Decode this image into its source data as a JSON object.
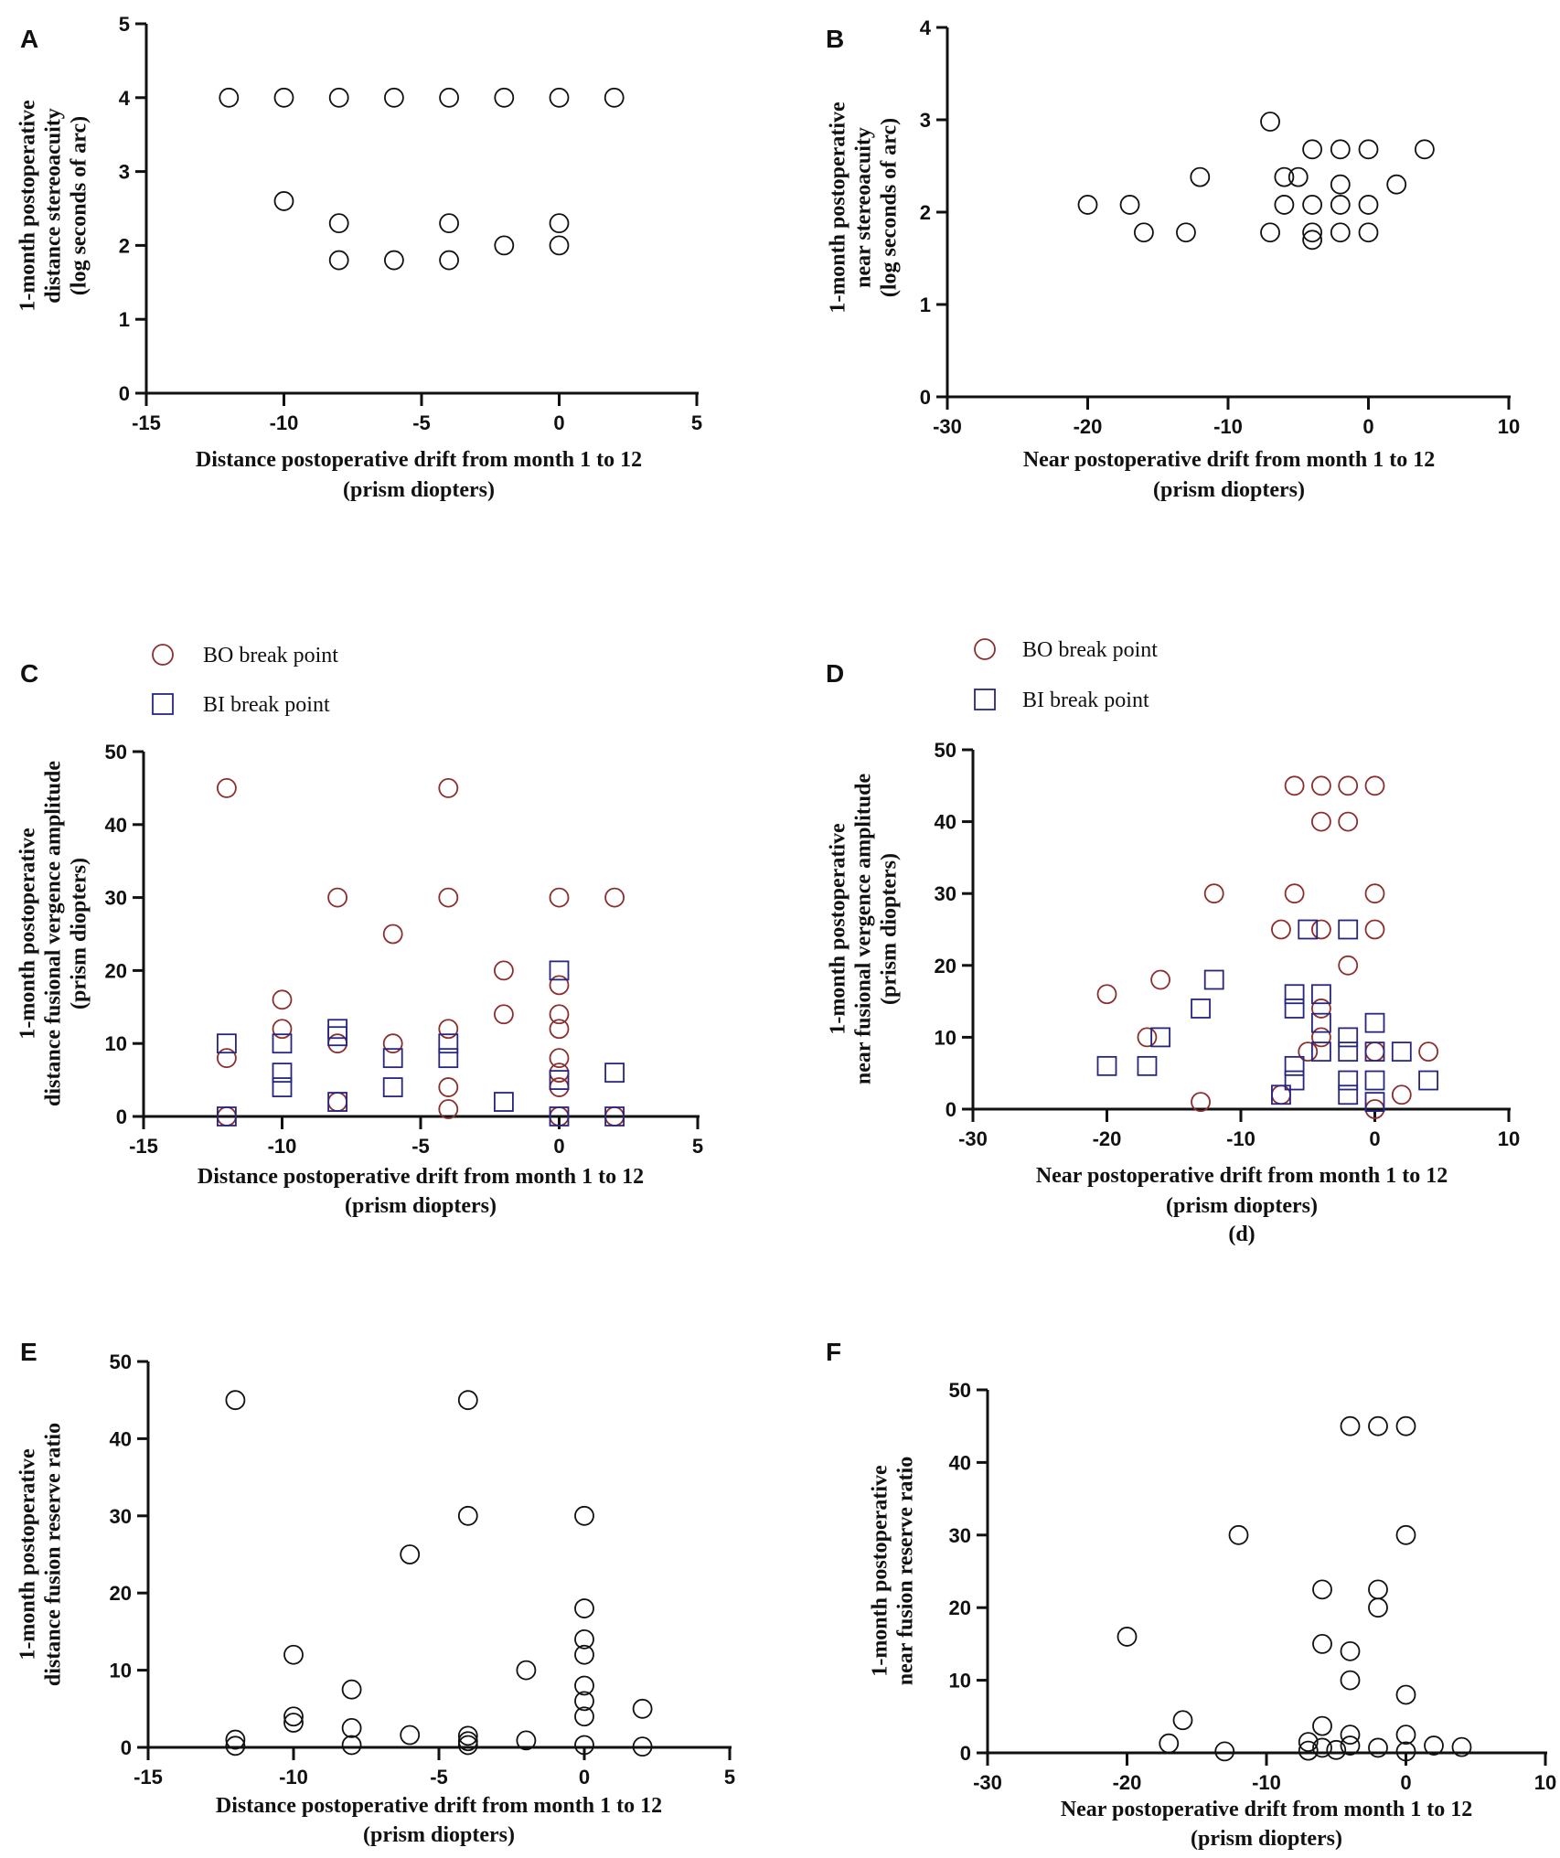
{
  "colors": {
    "black": "#111111",
    "bo": "#8b2e2e",
    "bi": "#262680"
  },
  "chart_data": [
    {
      "panel": "A",
      "type": "scatter",
      "title": "",
      "xlabel": [
        "Distance postoperative drift from month 1 to 12",
        "(prism diopters)"
      ],
      "ylabel": [
        "1-month postoperative",
        "distance stereoacuity",
        "(log seconds of arc)"
      ],
      "xlim": [
        -15,
        5
      ],
      "ylim": [
        0,
        5
      ],
      "xticks": [
        "-15",
        "-10",
        "-5",
        "0",
        "5"
      ],
      "yticks": [
        "0",
        "1",
        "2",
        "3",
        "4",
        "5"
      ],
      "series": [
        {
          "name": "stereoacuity",
          "marker": "circle",
          "color": "#111111",
          "points": [
            [
              -12,
              4
            ],
            [
              -10,
              4
            ],
            [
              -8,
              4
            ],
            [
              -6,
              4
            ],
            [
              -4,
              4
            ],
            [
              -2,
              4
            ],
            [
              0,
              4
            ],
            [
              2,
              4
            ],
            [
              -10,
              2.6
            ],
            [
              -8,
              2.3
            ],
            [
              -8,
              1.8
            ],
            [
              -6,
              1.8
            ],
            [
              -4,
              2.3
            ],
            [
              -4,
              1.8
            ],
            [
              -2,
              2.0
            ],
            [
              0,
              2.3
            ],
            [
              0,
              2.0
            ]
          ]
        }
      ]
    },
    {
      "panel": "B",
      "type": "scatter",
      "title": "",
      "xlabel": [
        "Near postoperative drift from month 1 to 12",
        "(prism diopters)"
      ],
      "ylabel": [
        "1-month postoperative",
        "near stereoacuity",
        "(log seconds of arc)"
      ],
      "xlim": [
        -30,
        10
      ],
      "ylim": [
        0,
        4
      ],
      "xticks": [
        "-30",
        "-20",
        "-10",
        "0",
        "10"
      ],
      "yticks": [
        "0",
        "1",
        "2",
        "3",
        "4"
      ],
      "series": [
        {
          "name": "stereoacuity",
          "marker": "circle",
          "color": "#111111",
          "points": [
            [
              -20,
              2.08
            ],
            [
              -17,
              2.08
            ],
            [
              -16,
              1.78
            ],
            [
              -13,
              1.78
            ],
            [
              -12,
              2.38
            ],
            [
              -7,
              2.98
            ],
            [
              -7,
              1.78
            ],
            [
              -6,
              2.38
            ],
            [
              -6,
              2.08
            ],
            [
              -5,
              2.38
            ],
            [
              -4,
              2.68
            ],
            [
              -4,
              2.08
            ],
            [
              -4,
              1.78
            ],
            [
              -4,
              1.7
            ],
            [
              -2,
              2.68
            ],
            [
              -2,
              2.3
            ],
            [
              -2,
              2.08
            ],
            [
              -2,
              1.78
            ],
            [
              0,
              2.68
            ],
            [
              0,
              2.08
            ],
            [
              0,
              1.78
            ],
            [
              2,
              2.3
            ],
            [
              4,
              2.68
            ]
          ]
        }
      ]
    },
    {
      "panel": "C",
      "type": "scatter",
      "title": "",
      "xlabel": [
        "Distance postoperative drift from month 1 to 12",
        "(prism diopters)"
      ],
      "ylabel": [
        "1-month postoperative",
        "distance fusional vergence amplitude",
        "(prism diopters)"
      ],
      "xlim": [
        -15,
        5
      ],
      "ylim": [
        0,
        50
      ],
      "xticks": [
        "-15",
        "-10",
        "-5",
        "0",
        "5"
      ],
      "yticks": [
        "0",
        "10",
        "20",
        "30",
        "40",
        "50"
      ],
      "legend": {
        "placement": "top-left"
      },
      "series": [
        {
          "name": "BO break point",
          "marker": "circle",
          "color": "#8b2e2e",
          "points": [
            [
              -12,
              45
            ],
            [
              -12,
              8
            ],
            [
              -12,
              0
            ],
            [
              -10,
              16
            ],
            [
              -10,
              12
            ],
            [
              -8,
              30
            ],
            [
              -8,
              10
            ],
            [
              -8,
              2
            ],
            [
              -6,
              25
            ],
            [
              -6,
              10
            ],
            [
              -4,
              45
            ],
            [
              -4,
              30
            ],
            [
              -4,
              12
            ],
            [
              -4,
              4
            ],
            [
              -4,
              1
            ],
            [
              -2,
              20
            ],
            [
              -2,
              14
            ],
            [
              0,
              30
            ],
            [
              0,
              18
            ],
            [
              0,
              14
            ],
            [
              0,
              12
            ],
            [
              0,
              8
            ],
            [
              0,
              6
            ],
            [
              0,
              4
            ],
            [
              0,
              0
            ],
            [
              2,
              30
            ],
            [
              2,
              0
            ]
          ]
        },
        {
          "name": "BI break point",
          "marker": "square",
          "color": "#262680",
          "points": [
            [
              -12,
              10
            ],
            [
              -12,
              0
            ],
            [
              -10,
              10
            ],
            [
              -10,
              6
            ],
            [
              -10,
              4
            ],
            [
              -8,
              12
            ],
            [
              -8,
              11
            ],
            [
              -8,
              2
            ],
            [
              -6,
              8
            ],
            [
              -6,
              4
            ],
            [
              -4,
              10
            ],
            [
              -4,
              8
            ],
            [
              -2,
              2
            ],
            [
              0,
              20
            ],
            [
              0,
              5
            ],
            [
              0,
              0
            ],
            [
              2,
              6
            ],
            [
              2,
              0
            ]
          ]
        }
      ]
    },
    {
      "panel": "D",
      "type": "scatter",
      "title": "",
      "caption": "(d)",
      "xlabel": [
        "Near postoperative drift from month 1 to 12",
        "(prism diopters)"
      ],
      "ylabel": [
        "1-month postoperative",
        "near fusional vergence amplitude",
        "(prism diopters)"
      ],
      "xlim": [
        -30,
        10
      ],
      "ylim": [
        0,
        50
      ],
      "xticks": [
        "-30",
        "-20",
        "-10",
        "0",
        "10"
      ],
      "yticks": [
        "0",
        "10",
        "20",
        "30",
        "40",
        "50"
      ],
      "legend": {
        "placement": "top-left"
      },
      "series": [
        {
          "name": "BO break point",
          "marker": "circle",
          "color": "#8b2e2e",
          "points": [
            [
              -20,
              16
            ],
            [
              -17,
              10
            ],
            [
              -16,
              18
            ],
            [
              -13,
              1
            ],
            [
              -12,
              30
            ],
            [
              -7,
              2
            ],
            [
              -6,
              45
            ],
            [
              -6,
              30
            ],
            [
              -7,
              25
            ],
            [
              -4,
              45
            ],
            [
              -4,
              40
            ],
            [
              -4,
              25
            ],
            [
              -4,
              14
            ],
            [
              -4,
              10
            ],
            [
              -5,
              8
            ],
            [
              -2,
              45
            ],
            [
              -2,
              40
            ],
            [
              -2,
              20
            ],
            [
              0,
              45
            ],
            [
              0,
              30
            ],
            [
              0,
              25
            ],
            [
              0,
              8
            ],
            [
              0,
              0
            ],
            [
              2,
              2
            ],
            [
              4,
              8
            ]
          ]
        },
        {
          "name": "BI break point",
          "marker": "square",
          "color": "#262680",
          "points": [
            [
              -20,
              6
            ],
            [
              -17,
              6
            ],
            [
              -16,
              10
            ],
            [
              -13,
              14
            ],
            [
              -12,
              18
            ],
            [
              -7,
              2
            ],
            [
              -6,
              16
            ],
            [
              -6,
              14
            ],
            [
              -6,
              6
            ],
            [
              -6,
              4
            ],
            [
              -5,
              25
            ],
            [
              -4,
              16
            ],
            [
              -4,
              12
            ],
            [
              -4,
              8
            ],
            [
              -2,
              25
            ],
            [
              -2,
              10
            ],
            [
              -2,
              8
            ],
            [
              -2,
              4
            ],
            [
              -2,
              2
            ],
            [
              0,
              12
            ],
            [
              0,
              8
            ],
            [
              0,
              4
            ],
            [
              0,
              1
            ],
            [
              2,
              8
            ],
            [
              4,
              4
            ]
          ]
        }
      ]
    },
    {
      "panel": "E",
      "type": "scatter",
      "title": "",
      "xlabel": [
        "Distance postoperative drift from month 1 to 12",
        "(prism diopters)"
      ],
      "ylabel": [
        "1-month postoperative",
        "distance fusion reserve ratio"
      ],
      "xlim": [
        -15,
        5
      ],
      "ylim": [
        0,
        50
      ],
      "xticks": [
        "-15",
        "-10",
        "-5",
        "0",
        "5"
      ],
      "yticks": [
        "0",
        "10",
        "20",
        "30",
        "40",
        "50"
      ],
      "series": [
        {
          "name": "fusion reserve ratio",
          "marker": "circle",
          "color": "#111111",
          "points": [
            [
              -12,
              45
            ],
            [
              -12,
              1
            ],
            [
              -12,
              0.2
            ],
            [
              -10,
              12
            ],
            [
              -10,
              4
            ],
            [
              -10,
              3.2
            ],
            [
              -8,
              7.5
            ],
            [
              -8,
              2.5
            ],
            [
              -8,
              0.3
            ],
            [
              -6,
              25
            ],
            [
              -6,
              1.6
            ],
            [
              -4,
              45
            ],
            [
              -4,
              30
            ],
            [
              -4,
              1.5
            ],
            [
              -4,
              0.8
            ],
            [
              -4,
              0.3
            ],
            [
              -2,
              10
            ],
            [
              -2,
              0.9
            ],
            [
              0,
              30
            ],
            [
              0,
              18
            ],
            [
              0,
              14
            ],
            [
              0,
              12
            ],
            [
              0,
              8
            ],
            [
              0,
              6
            ],
            [
              0,
              4
            ],
            [
              0,
              0.3
            ],
            [
              2,
              5
            ],
            [
              2,
              0.1
            ]
          ]
        }
      ]
    },
    {
      "panel": "F",
      "type": "scatter",
      "title": "",
      "xlabel": [
        "Near postoperative drift from month 1 to 12",
        "(prism diopters)"
      ],
      "ylabel": [
        "1-month postoperative",
        "near fusion reserve ratio"
      ],
      "xlim": [
        -30,
        10
      ],
      "ylim": [
        0,
        50
      ],
      "xticks": [
        "-30",
        "-20",
        "-10",
        "0",
        "10"
      ],
      "yticks": [
        "0",
        "10",
        "20",
        "30",
        "40",
        "50"
      ],
      "series": [
        {
          "name": "fusion reserve ratio",
          "marker": "circle",
          "color": "#111111",
          "points": [
            [
              -20,
              16
            ],
            [
              -17,
              1.3
            ],
            [
              -16,
              4.5
            ],
            [
              -13,
              0.2
            ],
            [
              -12,
              30
            ],
            [
              -7,
              1.5
            ],
            [
              -7,
              0.3
            ],
            [
              -6,
              22.5
            ],
            [
              -6,
              15
            ],
            [
              -6,
              3.7
            ],
            [
              -6,
              0.7
            ],
            [
              -5,
              0.4
            ],
            [
              -4,
              45
            ],
            [
              -4,
              14
            ],
            [
              -4,
              10
            ],
            [
              -4,
              2.5
            ],
            [
              -4,
              1
            ],
            [
              -2,
              45
            ],
            [
              -2,
              22.5
            ],
            [
              -2,
              20
            ],
            [
              -2,
              0.7
            ],
            [
              0,
              45
            ],
            [
              0,
              30
            ],
            [
              0,
              8
            ],
            [
              0,
              2.5
            ],
            [
              0,
              0.2
            ],
            [
              2,
              1
            ],
            [
              4,
              0.8
            ]
          ]
        }
      ]
    }
  ]
}
